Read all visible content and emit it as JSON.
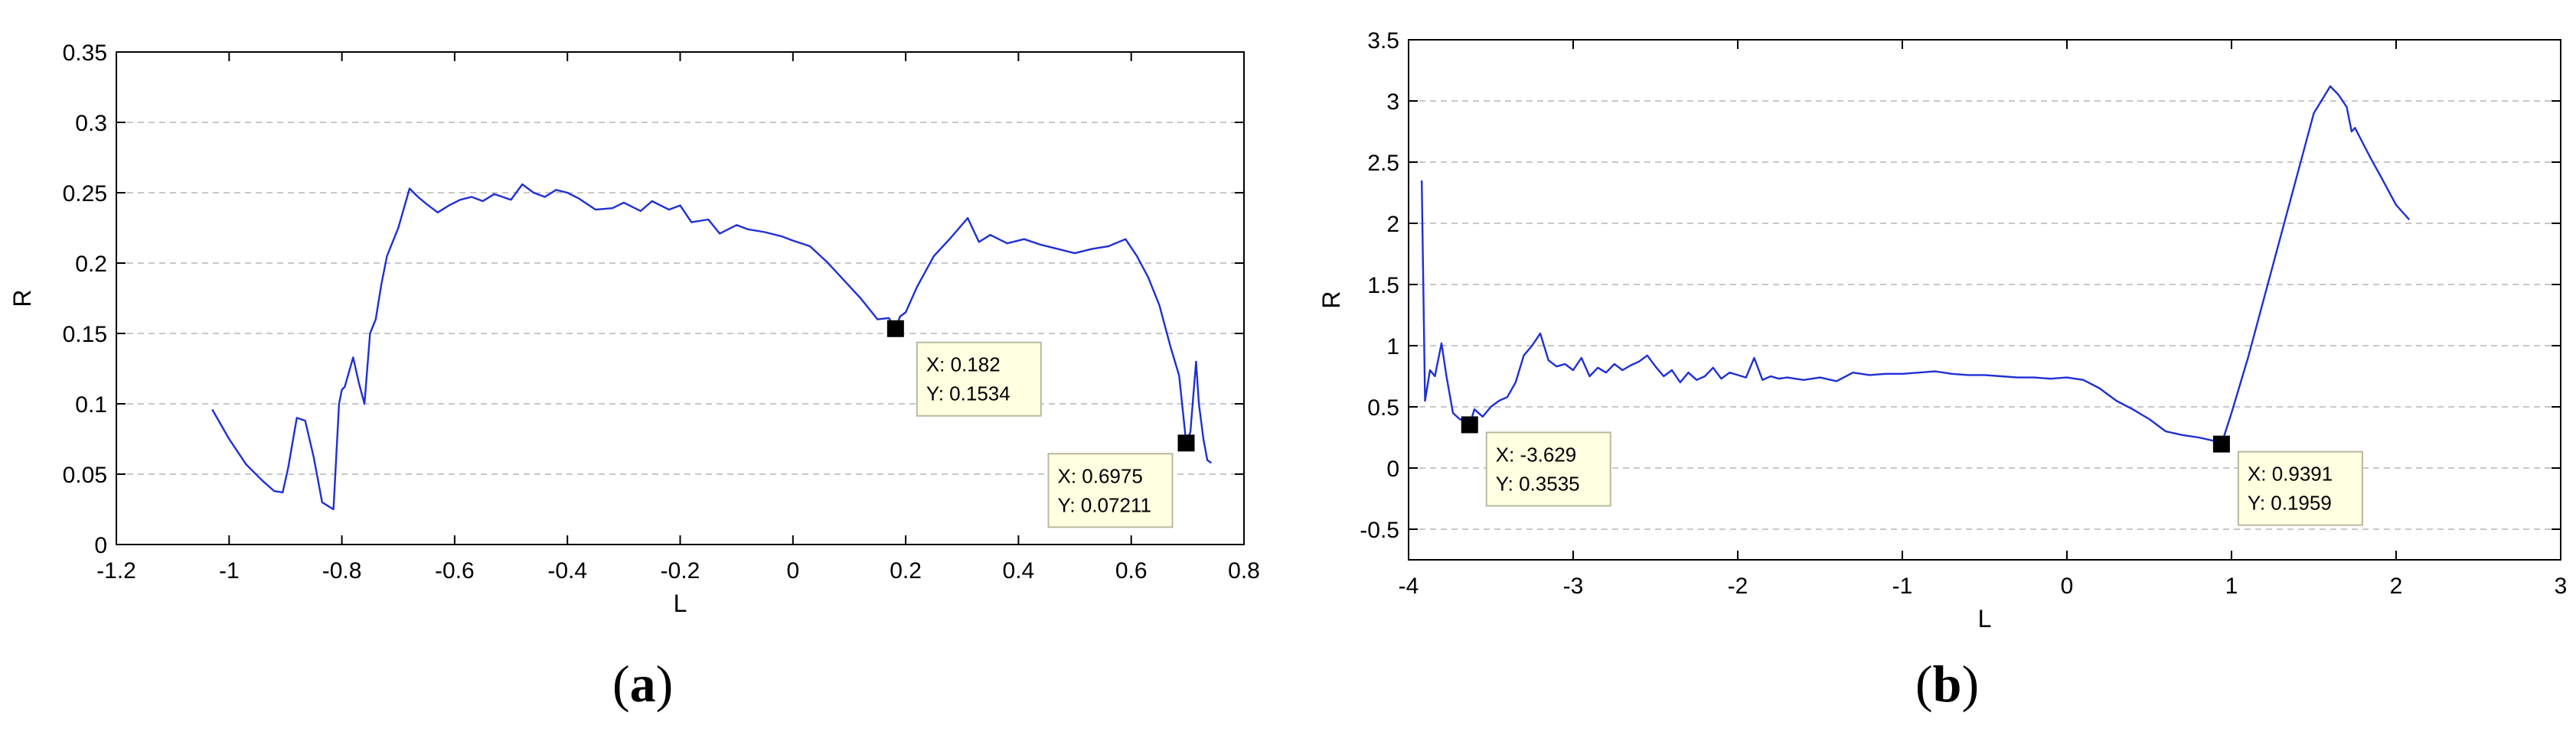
{
  "chart_data": [
    {
      "type": "line",
      "panel_label": "a",
      "xlabel": "L",
      "ylabel": "R",
      "xlim": [
        -1.2,
        0.8
      ],
      "ylim": [
        0,
        0.35
      ],
      "xticks": [
        "-1.2",
        "-1",
        "-0.8",
        "-0.6",
        "-0.4",
        "-0.2",
        "0",
        "0.2",
        "0.4",
        "0.6",
        "0.8"
      ],
      "yticks": [
        "0",
        "0.05",
        "0.1",
        "0.15",
        "0.2",
        "0.25",
        "0.3",
        "0.35"
      ],
      "grid": "horizontal dashed",
      "line_color": "#1f2fd6",
      "x": [
        -1.03,
        -1.0,
        -0.97,
        -0.94,
        -0.92,
        -0.905,
        -0.895,
        -0.88,
        -0.865,
        -0.85,
        -0.835,
        -0.815,
        -0.805,
        -0.8,
        -0.795,
        -0.78,
        -0.77,
        -0.76,
        -0.75,
        -0.74,
        -0.73,
        -0.72,
        -0.7,
        -0.68,
        -0.665,
        -0.65,
        -0.63,
        -0.61,
        -0.59,
        -0.57,
        -0.55,
        -0.53,
        -0.5,
        -0.48,
        -0.46,
        -0.44,
        -0.42,
        -0.4,
        -0.38,
        -0.35,
        -0.32,
        -0.3,
        -0.27,
        -0.25,
        -0.22,
        -0.2,
        -0.18,
        -0.15,
        -0.13,
        -0.1,
        -0.08,
        -0.05,
        -0.02,
        0.0,
        0.03,
        0.06,
        0.09,
        0.12,
        0.15,
        0.17,
        0.182,
        0.19,
        0.2,
        0.22,
        0.25,
        0.28,
        0.31,
        0.33,
        0.35,
        0.38,
        0.41,
        0.44,
        0.47,
        0.5,
        0.53,
        0.56,
        0.59,
        0.61,
        0.63,
        0.65,
        0.67,
        0.685,
        0.6975,
        0.705,
        0.715,
        0.72,
        0.728,
        0.735,
        0.742
      ],
      "values": [
        0.096,
        0.075,
        0.057,
        0.045,
        0.038,
        0.037,
        0.055,
        0.09,
        0.088,
        0.062,
        0.03,
        0.025,
        0.1,
        0.11,
        0.112,
        0.133,
        0.115,
        0.1,
        0.15,
        0.16,
        0.185,
        0.205,
        0.225,
        0.253,
        0.247,
        0.242,
        0.236,
        0.241,
        0.245,
        0.247,
        0.244,
        0.249,
        0.245,
        0.256,
        0.25,
        0.247,
        0.252,
        0.25,
        0.246,
        0.238,
        0.239,
        0.243,
        0.237,
        0.244,
        0.238,
        0.241,
        0.229,
        0.231,
        0.221,
        0.227,
        0.224,
        0.222,
        0.219,
        0.216,
        0.212,
        0.201,
        0.188,
        0.175,
        0.16,
        0.161,
        0.1534,
        0.162,
        0.165,
        0.183,
        0.205,
        0.218,
        0.232,
        0.215,
        0.22,
        0.214,
        0.217,
        0.213,
        0.21,
        0.207,
        0.21,
        0.212,
        0.217,
        0.205,
        0.19,
        0.17,
        0.14,
        0.12,
        0.07211,
        0.08,
        0.13,
        0.1,
        0.075,
        0.06,
        0.058
      ],
      "markers": [
        {
          "x": 0.182,
          "y": 0.1534,
          "label_x": "X: 0.182",
          "label_y": "Y: 0.1534"
        },
        {
          "x": 0.6975,
          "y": 0.07211,
          "label_x": "X: 0.6975",
          "label_y": "Y: 0.07211"
        }
      ]
    },
    {
      "type": "line",
      "panel_label": "b",
      "xlabel": "L",
      "ylabel": "R",
      "xlim": [
        -4,
        3
      ],
      "ylim": [
        -0.75,
        3.5
      ],
      "xticks": [
        "-4",
        "-3",
        "-2",
        "-1",
        "0",
        "1",
        "2",
        "3"
      ],
      "yticks": [
        "-0.5",
        "0",
        "0.5",
        "1",
        "1.5",
        "2",
        "2.5",
        "3",
        "3.5"
      ],
      "grid": "horizontal dashed",
      "line_color": "#1f2fd6",
      "x": [
        -3.92,
        -3.9,
        -3.87,
        -3.84,
        -3.8,
        -3.77,
        -3.73,
        -3.69,
        -3.65,
        -3.629,
        -3.6,
        -3.55,
        -3.5,
        -3.45,
        -3.4,
        -3.35,
        -3.3,
        -3.25,
        -3.2,
        -3.15,
        -3.1,
        -3.05,
        -3.0,
        -2.95,
        -2.9,
        -2.85,
        -2.8,
        -2.75,
        -2.7,
        -2.65,
        -2.6,
        -2.55,
        -2.5,
        -2.45,
        -2.4,
        -2.35,
        -2.3,
        -2.25,
        -2.2,
        -2.15,
        -2.1,
        -2.05,
        -2.0,
        -1.95,
        -1.9,
        -1.85,
        -1.8,
        -1.75,
        -1.7,
        -1.6,
        -1.5,
        -1.4,
        -1.3,
        -1.2,
        -1.1,
        -1.0,
        -0.9,
        -0.8,
        -0.7,
        -0.6,
        -0.5,
        -0.4,
        -0.3,
        -0.2,
        -0.1,
        0.0,
        0.1,
        0.2,
        0.3,
        0.4,
        0.5,
        0.6,
        0.7,
        0.8,
        0.9,
        0.9391,
        1.0,
        1.1,
        1.2,
        1.3,
        1.4,
        1.5,
        1.6,
        1.65,
        1.7,
        1.73,
        1.75,
        1.8,
        1.85,
        1.9,
        2.0,
        2.08
      ],
      "values": [
        2.35,
        0.55,
        0.8,
        0.75,
        1.02,
        0.75,
        0.45,
        0.4,
        0.38,
        0.3535,
        0.48,
        0.42,
        0.5,
        0.55,
        0.58,
        0.7,
        0.92,
        1.0,
        1.1,
        0.88,
        0.83,
        0.85,
        0.8,
        0.9,
        0.75,
        0.82,
        0.78,
        0.85,
        0.8,
        0.84,
        0.87,
        0.92,
        0.83,
        0.75,
        0.8,
        0.7,
        0.78,
        0.72,
        0.75,
        0.82,
        0.73,
        0.78,
        0.76,
        0.74,
        0.9,
        0.72,
        0.75,
        0.73,
        0.74,
        0.72,
        0.74,
        0.71,
        0.78,
        0.76,
        0.77,
        0.77,
        0.78,
        0.79,
        0.77,
        0.76,
        0.76,
        0.75,
        0.74,
        0.74,
        0.73,
        0.74,
        0.72,
        0.65,
        0.55,
        0.48,
        0.4,
        0.3,
        0.27,
        0.25,
        0.22,
        0.1959,
        0.45,
        0.9,
        1.4,
        1.9,
        2.4,
        2.9,
        3.12,
        3.05,
        2.95,
        2.75,
        2.78,
        2.65,
        2.52,
        2.4,
        2.15,
        2.03
      ],
      "markers": [
        {
          "x": -3.629,
          "y": 0.3535,
          "label_x": "X: -3.629",
          "label_y": "Y: 0.3535"
        },
        {
          "x": 0.9391,
          "y": 0.1959,
          "label_x": "X: 0.9391",
          "label_y": "Y: 0.1959"
        }
      ]
    }
  ]
}
